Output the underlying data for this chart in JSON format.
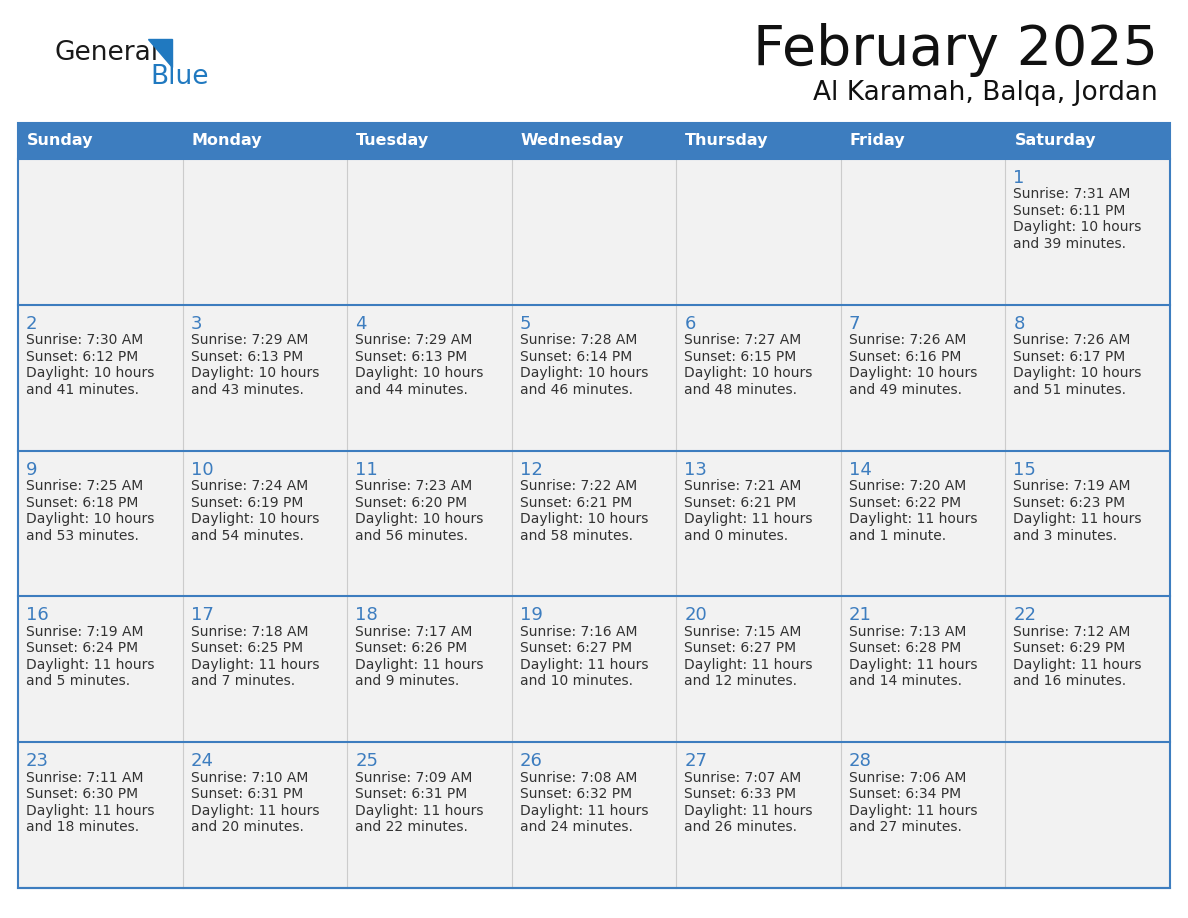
{
  "title": "February 2025",
  "subtitle": "Al Karamah, Balqa, Jordan",
  "days_of_week": [
    "Sunday",
    "Monday",
    "Tuesday",
    "Wednesday",
    "Thursday",
    "Friday",
    "Saturday"
  ],
  "header_bg": "#3D7DBF",
  "header_text": "#FFFFFF",
  "cell_bg": "#F2F2F2",
  "border_color": "#3D7DBF",
  "day_num_color": "#3D7DBF",
  "cell_text_color": "#333333",
  "logo_general_color": "#1A1A1A",
  "logo_blue_color": "#2079C0",
  "logo_triangle_color": "#2079C0",
  "calendar_data": [
    [
      null,
      null,
      null,
      null,
      null,
      null,
      {
        "day": 1,
        "sunrise": "7:31 AM",
        "sunset": "6:11 PM",
        "daylight_line1": "Daylight: 10 hours",
        "daylight_line2": "and 39 minutes."
      }
    ],
    [
      {
        "day": 2,
        "sunrise": "7:30 AM",
        "sunset": "6:12 PM",
        "daylight_line1": "Daylight: 10 hours",
        "daylight_line2": "and 41 minutes."
      },
      {
        "day": 3,
        "sunrise": "7:29 AM",
        "sunset": "6:13 PM",
        "daylight_line1": "Daylight: 10 hours",
        "daylight_line2": "and 43 minutes."
      },
      {
        "day": 4,
        "sunrise": "7:29 AM",
        "sunset": "6:13 PM",
        "daylight_line1": "Daylight: 10 hours",
        "daylight_line2": "and 44 minutes."
      },
      {
        "day": 5,
        "sunrise": "7:28 AM",
        "sunset": "6:14 PM",
        "daylight_line1": "Daylight: 10 hours",
        "daylight_line2": "and 46 minutes."
      },
      {
        "day": 6,
        "sunrise": "7:27 AM",
        "sunset": "6:15 PM",
        "daylight_line1": "Daylight: 10 hours",
        "daylight_line2": "and 48 minutes."
      },
      {
        "day": 7,
        "sunrise": "7:26 AM",
        "sunset": "6:16 PM",
        "daylight_line1": "Daylight: 10 hours",
        "daylight_line2": "and 49 minutes."
      },
      {
        "day": 8,
        "sunrise": "7:26 AM",
        "sunset": "6:17 PM",
        "daylight_line1": "Daylight: 10 hours",
        "daylight_line2": "and 51 minutes."
      }
    ],
    [
      {
        "day": 9,
        "sunrise": "7:25 AM",
        "sunset": "6:18 PM",
        "daylight_line1": "Daylight: 10 hours",
        "daylight_line2": "and 53 minutes."
      },
      {
        "day": 10,
        "sunrise": "7:24 AM",
        "sunset": "6:19 PM",
        "daylight_line1": "Daylight: 10 hours",
        "daylight_line2": "and 54 minutes."
      },
      {
        "day": 11,
        "sunrise": "7:23 AM",
        "sunset": "6:20 PM",
        "daylight_line1": "Daylight: 10 hours",
        "daylight_line2": "and 56 minutes."
      },
      {
        "day": 12,
        "sunrise": "7:22 AM",
        "sunset": "6:21 PM",
        "daylight_line1": "Daylight: 10 hours",
        "daylight_line2": "and 58 minutes."
      },
      {
        "day": 13,
        "sunrise": "7:21 AM",
        "sunset": "6:21 PM",
        "daylight_line1": "Daylight: 11 hours",
        "daylight_line2": "and 0 minutes."
      },
      {
        "day": 14,
        "sunrise": "7:20 AM",
        "sunset": "6:22 PM",
        "daylight_line1": "Daylight: 11 hours",
        "daylight_line2": "and 1 minute."
      },
      {
        "day": 15,
        "sunrise": "7:19 AM",
        "sunset": "6:23 PM",
        "daylight_line1": "Daylight: 11 hours",
        "daylight_line2": "and 3 minutes."
      }
    ],
    [
      {
        "day": 16,
        "sunrise": "7:19 AM",
        "sunset": "6:24 PM",
        "daylight_line1": "Daylight: 11 hours",
        "daylight_line2": "and 5 minutes."
      },
      {
        "day": 17,
        "sunrise": "7:18 AM",
        "sunset": "6:25 PM",
        "daylight_line1": "Daylight: 11 hours",
        "daylight_line2": "and 7 minutes."
      },
      {
        "day": 18,
        "sunrise": "7:17 AM",
        "sunset": "6:26 PM",
        "daylight_line1": "Daylight: 11 hours",
        "daylight_line2": "and 9 minutes."
      },
      {
        "day": 19,
        "sunrise": "7:16 AM",
        "sunset": "6:27 PM",
        "daylight_line1": "Daylight: 11 hours",
        "daylight_line2": "and 10 minutes."
      },
      {
        "day": 20,
        "sunrise": "7:15 AM",
        "sunset": "6:27 PM",
        "daylight_line1": "Daylight: 11 hours",
        "daylight_line2": "and 12 minutes."
      },
      {
        "day": 21,
        "sunrise": "7:13 AM",
        "sunset": "6:28 PM",
        "daylight_line1": "Daylight: 11 hours",
        "daylight_line2": "and 14 minutes."
      },
      {
        "day": 22,
        "sunrise": "7:12 AM",
        "sunset": "6:29 PM",
        "daylight_line1": "Daylight: 11 hours",
        "daylight_line2": "and 16 minutes."
      }
    ],
    [
      {
        "day": 23,
        "sunrise": "7:11 AM",
        "sunset": "6:30 PM",
        "daylight_line1": "Daylight: 11 hours",
        "daylight_line2": "and 18 minutes."
      },
      {
        "day": 24,
        "sunrise": "7:10 AM",
        "sunset": "6:31 PM",
        "daylight_line1": "Daylight: 11 hours",
        "daylight_line2": "and 20 minutes."
      },
      {
        "day": 25,
        "sunrise": "7:09 AM",
        "sunset": "6:31 PM",
        "daylight_line1": "Daylight: 11 hours",
        "daylight_line2": "and 22 minutes."
      },
      {
        "day": 26,
        "sunrise": "7:08 AM",
        "sunset": "6:32 PM",
        "daylight_line1": "Daylight: 11 hours",
        "daylight_line2": "and 24 minutes."
      },
      {
        "day": 27,
        "sunrise": "7:07 AM",
        "sunset": "6:33 PM",
        "daylight_line1": "Daylight: 11 hours",
        "daylight_line2": "and 26 minutes."
      },
      {
        "day": 28,
        "sunrise": "7:06 AM",
        "sunset": "6:34 PM",
        "daylight_line1": "Daylight: 11 hours",
        "daylight_line2": "and 27 minutes."
      },
      null
    ]
  ]
}
